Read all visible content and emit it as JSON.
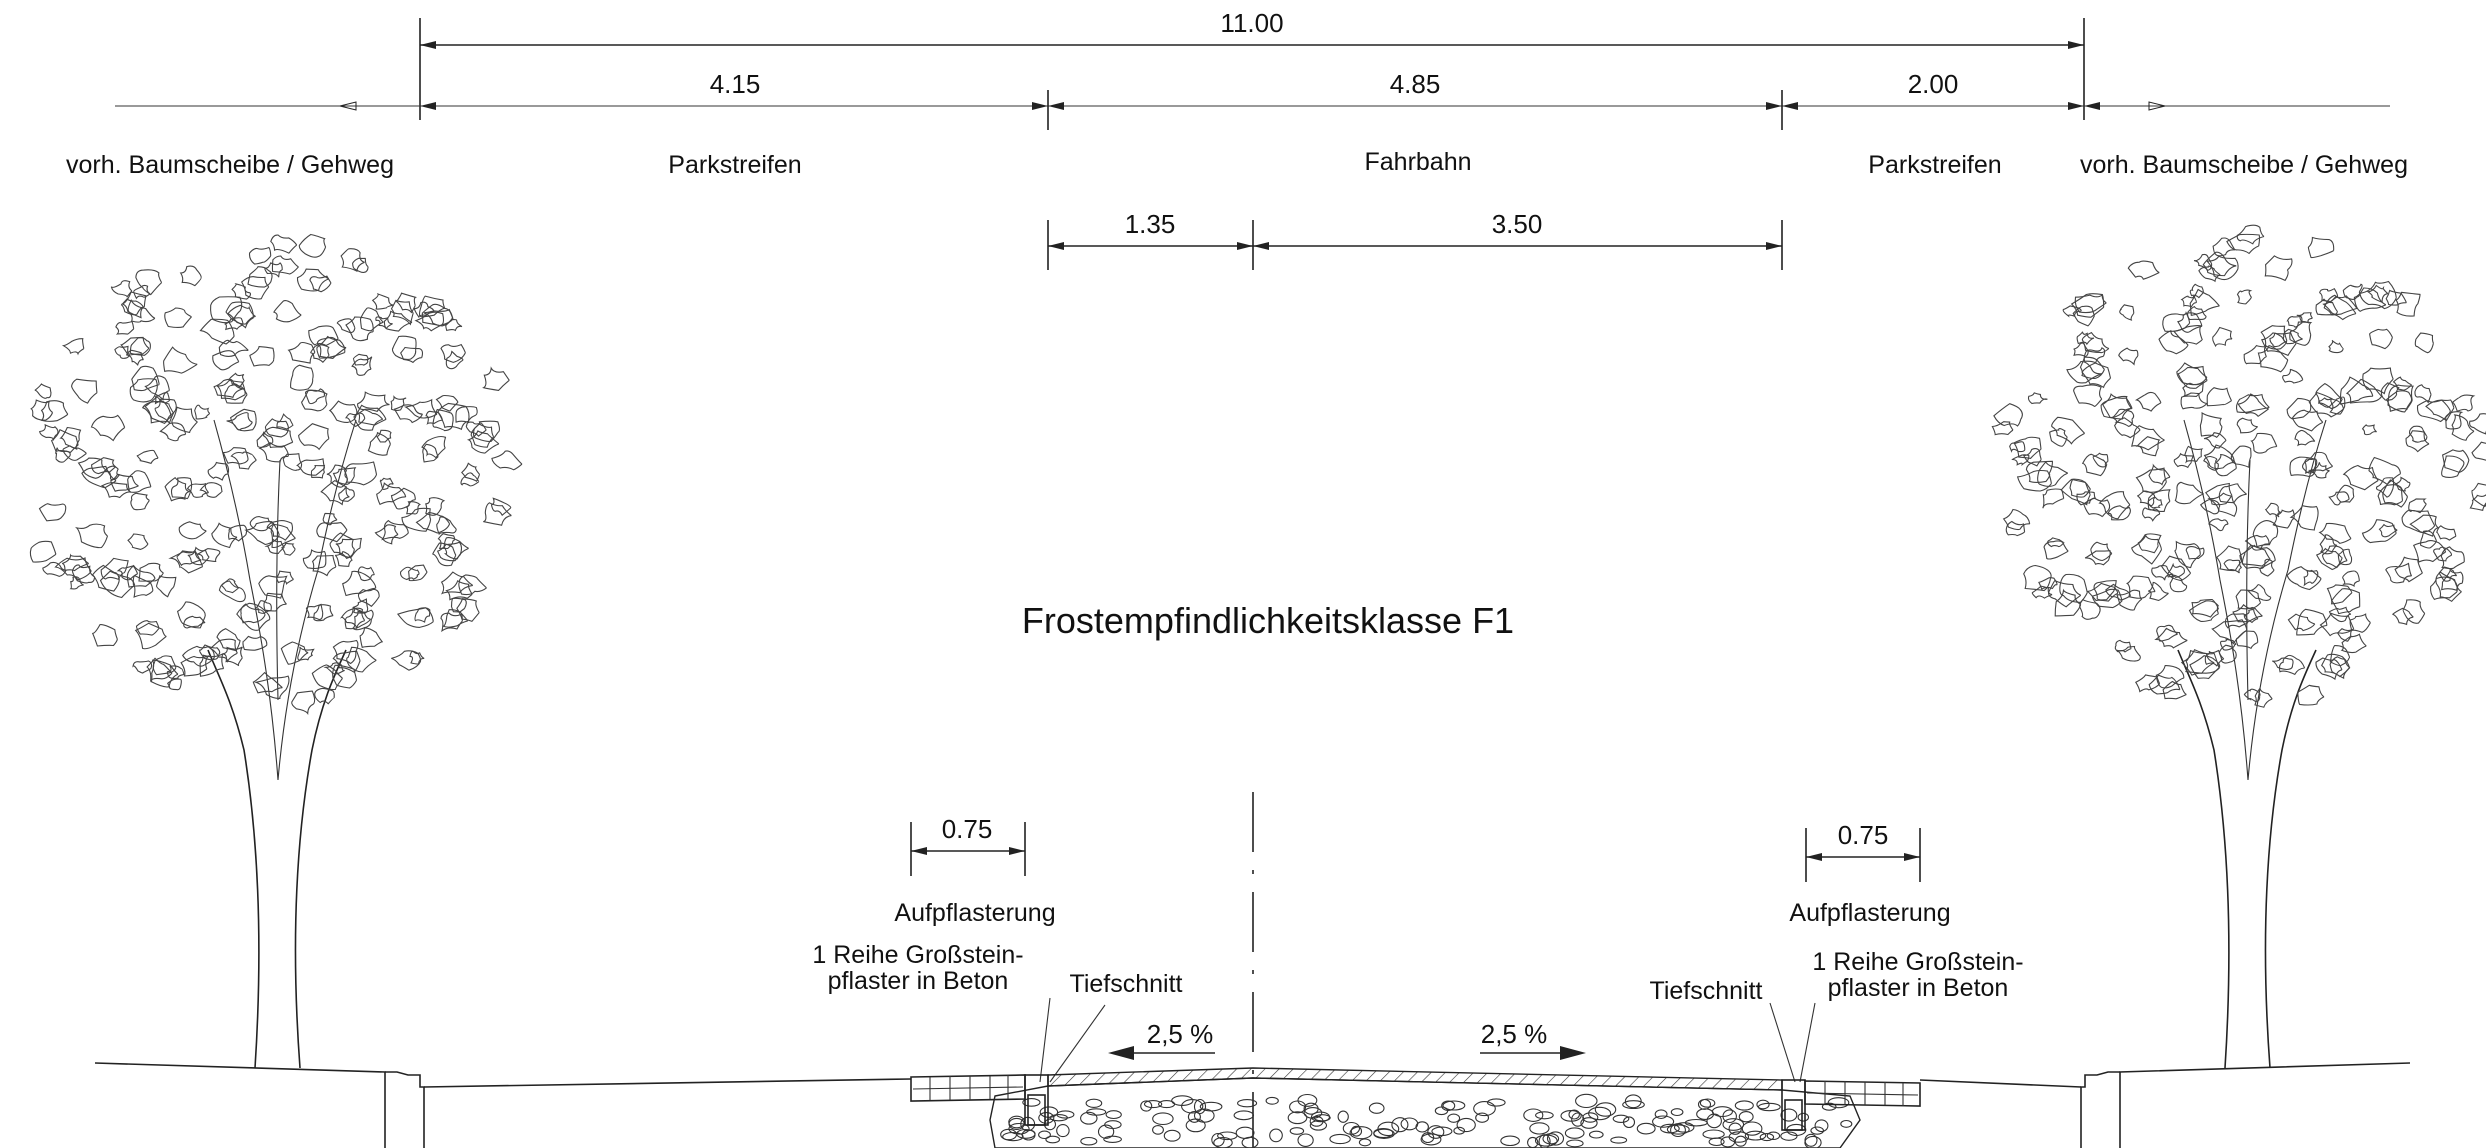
{
  "dimensions": {
    "total": "11.00",
    "left_park": "4.15",
    "roadway": "4.85",
    "right_park": "2.00",
    "lane_part_a": "1.35",
    "lane_part_b": "3.50",
    "paving_left": "0.75",
    "paving_right": "0.75"
  },
  "zones": {
    "left_sidewalk": "vorh. Baumscheibe / Gehweg",
    "left_parking": "Parkstreifen",
    "roadway": "Fahrbahn",
    "right_parking": "Parkstreifen",
    "right_sidewalk": "vorh. Baumscheibe / Gehweg"
  },
  "title": "Frostempfindlichkeitsklasse F1",
  "annotations": {
    "left_paving": "Aufpflasterung",
    "right_paving": "Aufpflasterung",
    "left_stones_line1": "1 Reihe Großstein-",
    "left_stones_line2": "pflaster in Beton",
    "right_stones_line1": "1 Reihe Großstein-",
    "right_stones_line2": "pflaster in Beton",
    "left_deep_cut": "Tiefschnitt",
    "right_deep_cut": "Tiefschnitt",
    "slope_left": "2,5 %",
    "slope_right": "2,5 %"
  },
  "colors": {
    "line": "#222222",
    "background": "#ffffff"
  }
}
